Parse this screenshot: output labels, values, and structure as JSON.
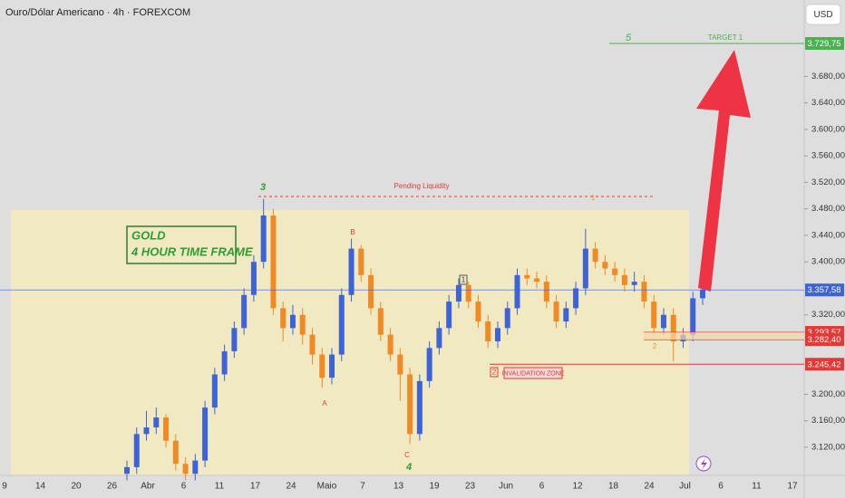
{
  "chart_data": {
    "type": "candlestick",
    "title": "Ouro/Dólar Americano · 4h · FOREXCOM",
    "currency": "USD",
    "up_color": "#3d63d6",
    "down_color": "#f08a24",
    "open": [
      3080,
      3090,
      3140,
      3150,
      3165,
      3130,
      3095,
      3080,
      3100,
      3180,
      3230,
      3265,
      3300,
      3350,
      3400,
      3470,
      3330,
      3300,
      3320,
      3290,
      3260,
      3225,
      3260,
      3350,
      3420,
      3380,
      3330,
      3290,
      3260,
      3230,
      3140,
      3220,
      3270,
      3300,
      3340,
      3365,
      3340,
      3310,
      3280,
      3300,
      3330,
      3380,
      3375,
      3370,
      3340,
      3310,
      3330,
      3360,
      3420,
      3400,
      3390,
      3380,
      3365,
      3370,
      3340,
      3300,
      3320,
      3280,
      3290,
      3345
    ],
    "high": [
      3100,
      3150,
      3175,
      3180,
      3170,
      3140,
      3105,
      3110,
      3190,
      3240,
      3275,
      3310,
      3360,
      3410,
      3495,
      3480,
      3340,
      3335,
      3330,
      3300,
      3270,
      3270,
      3360,
      3435,
      3425,
      3390,
      3340,
      3300,
      3270,
      3240,
      3230,
      3280,
      3310,
      3350,
      3375,
      3370,
      3350,
      3320,
      3310,
      3340,
      3390,
      3390,
      3385,
      3380,
      3350,
      3340,
      3370,
      3450,
      3430,
      3410,
      3400,
      3390,
      3385,
      3380,
      3350,
      3330,
      3330,
      3300,
      3355,
      3365
    ],
    "low": [
      3070,
      3080,
      3130,
      3140,
      3120,
      3085,
      3070,
      3070,
      3090,
      3170,
      3220,
      3255,
      3290,
      3340,
      3390,
      3320,
      3280,
      3290,
      3275,
      3245,
      3210,
      3215,
      3250,
      3340,
      3370,
      3320,
      3280,
      3250,
      3190,
      3125,
      3130,
      3210,
      3260,
      3290,
      3330,
      3330,
      3300,
      3270,
      3270,
      3290,
      3320,
      3365,
      3360,
      3330,
      3300,
      3300,
      3320,
      3350,
      3390,
      3380,
      3370,
      3355,
      3355,
      3330,
      3290,
      3290,
      3250,
      3270,
      3280,
      3335
    ],
    "close": [
      3090,
      3140,
      3150,
      3165,
      3130,
      3095,
      3080,
      3100,
      3180,
      3230,
      3265,
      3300,
      3350,
      3400,
      3470,
      3330,
      3300,
      3320,
      3290,
      3260,
      3225,
      3260,
      3350,
      3420,
      3380,
      3330,
      3290,
      3260,
      3230,
      3140,
      3220,
      3270,
      3300,
      3340,
      3365,
      3340,
      3310,
      3280,
      3300,
      3330,
      3380,
      3375,
      3370,
      3340,
      3310,
      3330,
      3360,
      3420,
      3400,
      3390,
      3380,
      3365,
      3370,
      3340,
      3300,
      3320,
      3280,
      3290,
      3345,
      3358
    ],
    "ylim": [
      3077.6,
      3795.4
    ],
    "yticks": [
      {
        "value": 3120,
        "label": "3.120,00"
      },
      {
        "value": 3160,
        "label": "3.160,00"
      },
      {
        "value": 3200,
        "label": "3.200,00"
      },
      {
        "value": 3320,
        "label": "3.320,00"
      },
      {
        "value": 3400,
        "label": "3.400,00"
      },
      {
        "value": 3440,
        "label": "3.440,00"
      },
      {
        "value": 3480,
        "label": "3.480,00"
      },
      {
        "value": 3520,
        "label": "3.520,00"
      },
      {
        "value": 3560,
        "label": "3.560,00"
      },
      {
        "value": 3600,
        "label": "3.600,00"
      },
      {
        "value": 3640,
        "label": "3.640,00"
      },
      {
        "value": 3680,
        "label": "3.680,00"
      }
    ],
    "categories": [
      "9",
      "14",
      "20",
      "26",
      "Abr",
      "6",
      "11",
      "17",
      "24",
      "Maio",
      "7",
      "13",
      "19",
      "23",
      "Jun",
      "6",
      "12",
      "18",
      "24",
      "Jul",
      "6",
      "11",
      "17"
    ],
    "levels": [
      {
        "value": 3729.75,
        "label": "3.729,75",
        "color": "#4caf50"
      },
      {
        "value": 3357.58,
        "label": "3.357,58",
        "color": "#3d63d6"
      },
      {
        "value": 3293.57,
        "label": "3.293,57",
        "color": "#e53935"
      },
      {
        "value": 3282.4,
        "label": "3.282,40",
        "color": "#e53935"
      },
      {
        "value": 3245.42,
        "label": "3.245,42",
        "color": "#e53935"
      }
    ],
    "annotations": {
      "gold": "GOLD",
      "timeframe": "4 HOUR TIME FRAME",
      "pending": "Pending Liquidity",
      "target": "TARGET 1",
      "invalidation": "INVALIDATION ZONE",
      "wave_3": "3",
      "wave_5": "5",
      "wave_4": "4",
      "wave_a": "A",
      "wave_b": "B",
      "wave_c": "C",
      "box_1": "1",
      "box_2": "2",
      "minor_1": "1",
      "minor_2": "2"
    }
  }
}
